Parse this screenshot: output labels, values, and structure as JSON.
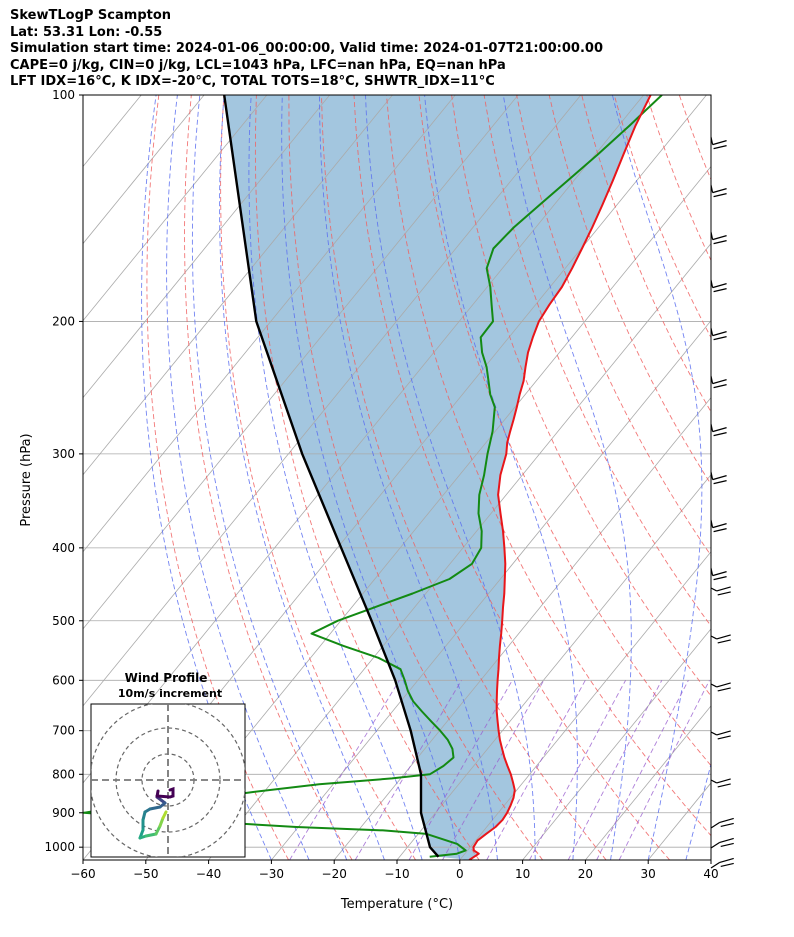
{
  "header": {
    "lines": [
      "SkewTLogP Scampton",
      "Lat: 53.31   Lon: -0.55",
      "Simulation start time: 2024-01-06_00:00:00, Valid time: 2024-01-07T21:00:00.00",
      "CAPE=0 j/kg, CIN=0 j/kg, LCL=1043 hPa, LFC=nan hPa, EQ=nan hPa",
      "LFT IDX=16°C, K IDX=-20°C, TOTAL TOTS=18°C, SHWTR_IDX=11°C"
    ]
  },
  "chart_data": {
    "type": "line",
    "title": "SkewTLogP Scampton",
    "xlabel": "Temperature (°C)",
    "ylabel": "Pressure (hPa)",
    "xlim": [
      -60,
      40
    ],
    "ylim": [
      1040,
      100
    ],
    "y_scale": "log",
    "x_ticks": [
      "−60",
      "−50",
      "−40",
      "−30",
      "−20",
      "−10",
      "0",
      "10",
      "20",
      "30",
      "40"
    ],
    "x_tick_values": [
      -60,
      -50,
      -40,
      -30,
      -20,
      -10,
      0,
      10,
      20,
      30,
      40
    ],
    "y_ticks": [
      "1000",
      "900",
      "800",
      "700",
      "600",
      "500",
      "400",
      "300",
      "200",
      "100"
    ],
    "y_tick_values": [
      1000,
      900,
      800,
      700,
      600,
      500,
      400,
      300,
      200,
      100
    ],
    "grid": true,
    "skewed": true,
    "colors": {
      "temperature": "#e8161a",
      "dewpoint": "#138a13",
      "parcel": "#000000",
      "shade": "#a3c6df",
      "dry_adiabats": "#f06060",
      "moist_adiabats": "#5a6ef0",
      "mixing_ratio": "#9a5fd0",
      "isotherms": "#aaaaaa"
    },
    "series": [
      {
        "key": "temperature",
        "points": [
          [
            1.5,
            1040
          ],
          [
            2.2,
            1020
          ],
          [
            1.0,
            1010
          ],
          [
            0.5,
            1000
          ],
          [
            0.3,
            980
          ],
          [
            0.8,
            960
          ],
          [
            1.4,
            940
          ],
          [
            1.6,
            920
          ],
          [
            1.4,
            900
          ],
          [
            1.0,
            880
          ],
          [
            0.5,
            860
          ],
          [
            -0.3,
            840
          ],
          [
            -1.6,
            820
          ],
          [
            -3.0,
            800
          ],
          [
            -4.6,
            780
          ],
          [
            -6.2,
            760
          ],
          [
            -7.7,
            740
          ],
          [
            -9.2,
            720
          ],
          [
            -10.6,
            700
          ],
          [
            -12.0,
            680
          ],
          [
            -13.4,
            660
          ],
          [
            -14.7,
            640
          ],
          [
            -16.0,
            620
          ],
          [
            -17.3,
            600
          ],
          [
            -18.6,
            580
          ],
          [
            -20.0,
            560
          ],
          [
            -21.4,
            540
          ],
          [
            -22.8,
            520
          ],
          [
            -24.3,
            500
          ],
          [
            -25.9,
            480
          ],
          [
            -27.5,
            460
          ],
          [
            -29.3,
            440
          ],
          [
            -31.2,
            420
          ],
          [
            -33.4,
            400
          ],
          [
            -35.8,
            380
          ],
          [
            -38.5,
            360
          ],
          [
            -41.3,
            340
          ],
          [
            -43.5,
            320
          ],
          [
            -45.3,
            300
          ],
          [
            -46.6,
            290
          ],
          [
            -47.6,
            280
          ],
          [
            -48.6,
            270
          ],
          [
            -49.7,
            260
          ],
          [
            -50.9,
            250
          ],
          [
            -52.0,
            240
          ],
          [
            -53.5,
            230
          ],
          [
            -55.0,
            220
          ],
          [
            -56.2,
            210
          ],
          [
            -57.3,
            200
          ],
          [
            -57.8,
            190
          ],
          [
            -58.1,
            180
          ],
          [
            -58.9,
            170
          ],
          [
            -59.9,
            160
          ],
          [
            -61.0,
            150
          ],
          [
            -62.3,
            140
          ],
          [
            -63.8,
            130
          ],
          [
            -65.5,
            120
          ],
          [
            -67.3,
            110
          ],
          [
            -68.9,
            100
          ]
        ]
      },
      {
        "key": "dewpoint",
        "points": [
          [
            -5.2,
            1030
          ],
          [
            -1.3,
            1020
          ],
          [
            -0.3,
            1010
          ],
          [
            -2.5,
            990
          ],
          [
            -8.7,
            960
          ],
          [
            -16.0,
            950
          ],
          [
            -30.3,
            940
          ],
          [
            -50.0,
            920
          ],
          [
            -66.0,
            900
          ],
          [
            -60.0,
            880
          ],
          [
            -48.0,
            860
          ],
          [
            -42.0,
            845
          ],
          [
            -32.2,
            825
          ],
          [
            -21.4,
            810
          ],
          [
            -15.9,
            800
          ],
          [
            -14.8,
            780
          ],
          [
            -14.3,
            760
          ],
          [
            -15.6,
            740
          ],
          [
            -17.5,
            720
          ],
          [
            -19.9,
            700
          ],
          [
            -22.6,
            680
          ],
          [
            -25.3,
            660
          ],
          [
            -28.0,
            640
          ],
          [
            -30.2,
            620
          ],
          [
            -32.1,
            600
          ],
          [
            -34.2,
            580
          ],
          [
            -39.2,
            560
          ],
          [
            -46.3,
            540
          ],
          [
            -53.0,
            520
          ],
          [
            -50.5,
            500
          ],
          [
            -46.4,
            480
          ],
          [
            -42.1,
            460
          ],
          [
            -38.1,
            440
          ],
          [
            -36.5,
            420
          ],
          [
            -37.1,
            400
          ],
          [
            -39.2,
            380
          ],
          [
            -42.0,
            360
          ],
          [
            -44.3,
            340
          ],
          [
            -46.1,
            320
          ],
          [
            -48.3,
            300
          ],
          [
            -50.4,
            280
          ],
          [
            -53.2,
            260
          ],
          [
            -55.6,
            250
          ],
          [
            -57.6,
            240
          ],
          [
            -59.7,
            230
          ],
          [
            -62.3,
            220
          ],
          [
            -64.5,
            210
          ],
          [
            -64.6,
            200
          ],
          [
            -67.0,
            190
          ],
          [
            -69.5,
            180
          ],
          [
            -72.5,
            170
          ],
          [
            -74.0,
            160
          ],
          [
            -73.5,
            150
          ],
          [
            -72.3,
            140
          ],
          [
            -71.0,
            130
          ],
          [
            -69.6,
            120
          ],
          [
            -68.3,
            110
          ],
          [
            -67.1,
            100
          ]
        ]
      },
      {
        "key": "parcel",
        "points": [
          [
            -3.8,
            1030
          ],
          [
            -6.4,
            1000
          ],
          [
            -12.3,
            900
          ],
          [
            -17.3,
            800
          ],
          [
            -24.6,
            700
          ],
          [
            -33.6,
            600
          ],
          [
            -45.1,
            500
          ],
          [
            -59.4,
            400
          ],
          [
            -77.8,
            300
          ],
          [
            -102.3,
            200
          ],
          [
            -136.8,
            100
          ]
        ]
      }
    ],
    "wind_profile": {
      "title": "Wind Profile",
      "subtitle": "10m/s increment"
    }
  }
}
